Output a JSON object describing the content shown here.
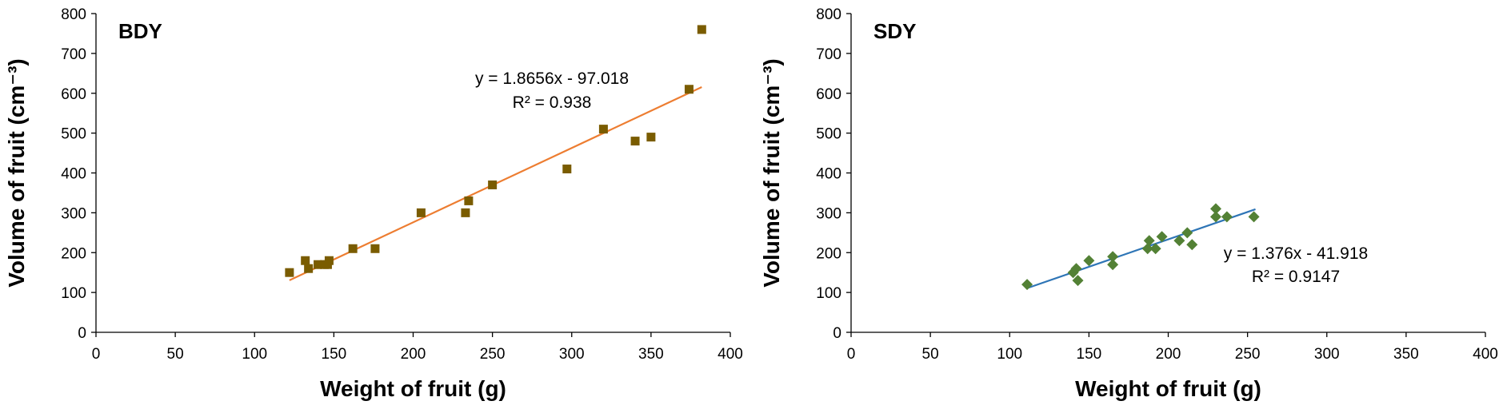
{
  "chart_data": [
    {
      "type": "scatter",
      "panel_label": "BDY",
      "xlabel": "Weight of fruit (g)",
      "ylabel": "Volume of fruit (cm⁻³)",
      "xlim": [
        0,
        400
      ],
      "ylim": [
        0,
        800
      ],
      "xticks": [
        0,
        50,
        100,
        150,
        200,
        250,
        300,
        350,
        400
      ],
      "yticks": [
        0,
        100,
        200,
        300,
        400,
        500,
        600,
        700,
        800
      ],
      "grid": false,
      "marker": "square",
      "marker_color": "#7a5c00",
      "trendline_color": "#ed7d31",
      "equation": "y = 1.8656x - 97.018",
      "r2_label": "R² = 0.938",
      "trendline": {
        "slope": 1.8656,
        "intercept": -97.018,
        "x_range": [
          122,
          382
        ]
      },
      "x": [
        122,
        132,
        134,
        140,
        144,
        146,
        147,
        162,
        176,
        205,
        233,
        235,
        250,
        297,
        320,
        340,
        350,
        374,
        382
      ],
      "y": [
        150,
        180,
        160,
        170,
        170,
        170,
        180,
        210,
        210,
        300,
        300,
        330,
        370,
        410,
        510,
        480,
        490,
        610,
        760
      ]
    },
    {
      "type": "scatter",
      "panel_label": "SDY",
      "xlabel": "Weight of fruit (g)",
      "ylabel": "Volume of fruit (cm⁻³)",
      "xlim": [
        0,
        400
      ],
      "ylim": [
        0,
        800
      ],
      "xticks": [
        0,
        50,
        100,
        150,
        200,
        250,
        300,
        350,
        400
      ],
      "yticks": [
        0,
        100,
        200,
        300,
        400,
        500,
        600,
        700,
        800
      ],
      "grid": false,
      "marker": "diamond",
      "marker_color": "#538135",
      "trendline_color": "#2e75b6",
      "equation": "y = 1.376x - 41.918",
      "r2_label": "R² = 0.9147",
      "trendline": {
        "slope": 1.376,
        "intercept": -41.918,
        "x_range": [
          111,
          255
        ]
      },
      "x": [
        111,
        140,
        142,
        143,
        150,
        165,
        165,
        187,
        188,
        192,
        196,
        207,
        212,
        215,
        230,
        230,
        237,
        254
      ],
      "y": [
        120,
        150,
        160,
        130,
        180,
        170,
        190,
        210,
        230,
        210,
        240,
        230,
        250,
        220,
        310,
        290,
        290,
        290
      ]
    }
  ]
}
